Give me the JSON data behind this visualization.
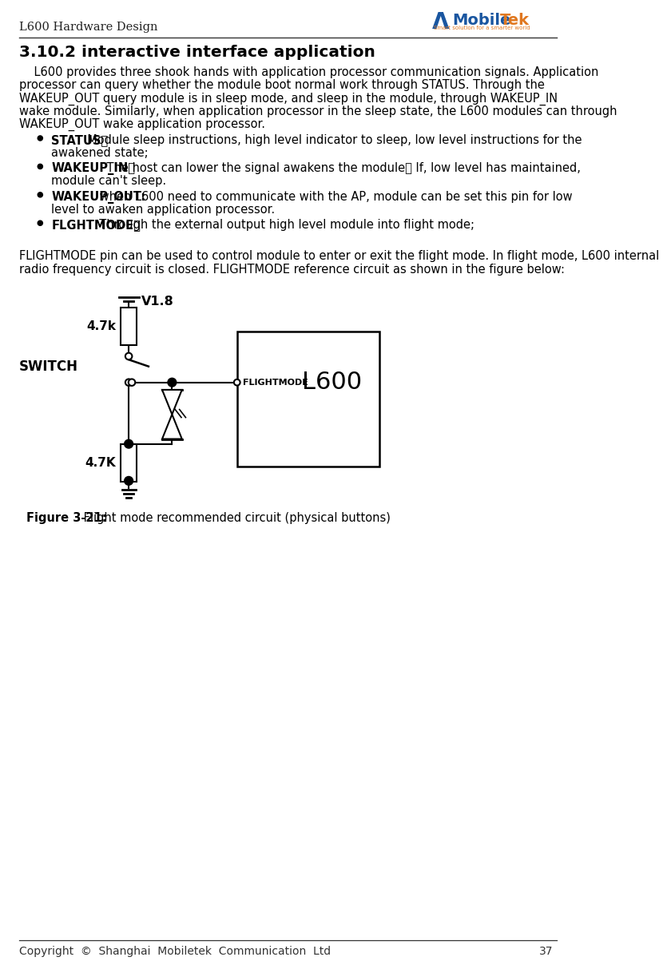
{
  "page_width": 9.04,
  "page_height": 15.41,
  "bg_color": "#ffffff",
  "header_text": "L600 Hardware Design",
  "logo_mobiletek_blue": "#1a56a0",
  "logo_mobiletek_orange": "#e07820",
  "section_title": "3.10.2 interactive interface application",
  "body_lines": [
    "    L600 provides three shook hands with application processor communication signals. Application",
    "processor can query whether the module boot normal work through STATUS. Through the",
    "WAKEUP_OUT query module is in sleep mode, and sleep in the module, through WAKEUP_IN",
    "wake module. Similarly, when application processor in the sleep state, the L600 modules can through",
    "WAKEUP_OUT wake application processor."
  ],
  "bullet1_bold": "STATUS：",
  "bullet1_normal": "  Module sleep instructions, high level indicator to sleep, low level instructions for the",
  "bullet1_cont": "awakened state;",
  "bullet2_bold": "WAKEUP_IN：",
  "bullet2_normal": "    The host can lower the signal awakens the module， If, low level has maintained,",
  "bullet2_cont": "module can't sleep.",
  "bullet3_bold": "WAKEUP_OUT:",
  "bullet3_normal": " when L600 need to communicate with the AP, module can be set this pin for low",
  "bullet3_cont": "level to awaken application processor.",
  "bullet4_bold": "FLGHTMODE：",
  "bullet4_normal": "  Through the external output high level module into flight mode;",
  "para2_lines": [
    "FLIGHTMODE pin can be used to control module to enter or exit the flight mode. In flight mode, L600 internal",
    "radio frequency circuit is closed. FLIGHTMODE reference circuit as shown in the figure below:"
  ],
  "figure_caption_bold": "Figure 3-21:",
  "figure_caption_normal": " Flight mode recommended circuit (physical buttons)",
  "footer_text": "Copyright  ©  Shanghai  Mobiletek  Communication  Ltd",
  "footer_page": "37",
  "v18_label": "V1.8",
  "r1_label": "4.7k",
  "r2_label": "4.7K",
  "switch_label": "SWITCH",
  "flightmode_label": "FLIGHTMODE",
  "l600_label": "L600"
}
